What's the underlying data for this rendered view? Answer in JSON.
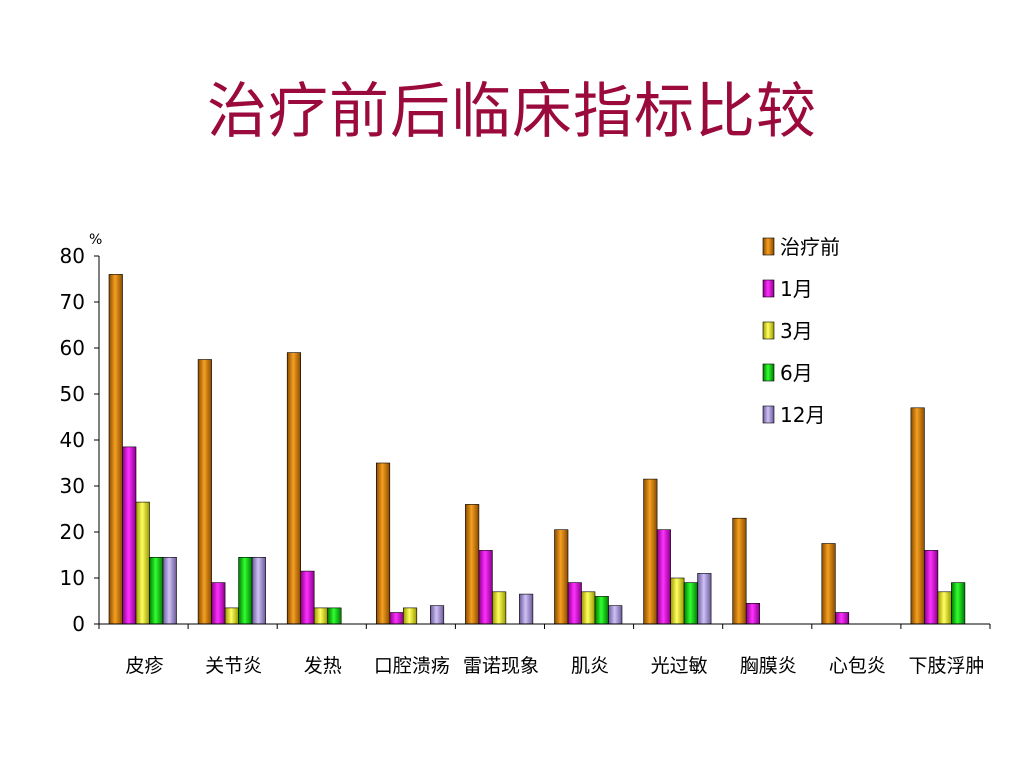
{
  "slide": {
    "title": "治疗前后临床指标比较"
  },
  "chart_data": {
    "type": "bar",
    "title": "",
    "xlabel": "",
    "ylabel": "%",
    "ylim": [
      0,
      80
    ],
    "yticks": [
      0,
      10,
      20,
      30,
      40,
      50,
      60,
      70,
      80
    ],
    "grid": false,
    "legend_position": "top-right",
    "categories": [
      "皮疹",
      "关节炎",
      "发热",
      "口腔溃疡",
      "雷诺现象",
      "肌炎",
      "光过敏",
      "胸膜炎",
      "心包炎",
      "下肢浮肿"
    ],
    "series": [
      {
        "name": "治疗前",
        "color": "#cc7a00",
        "values": [
          76,
          57.5,
          59,
          35,
          26,
          20.5,
          31.5,
          23,
          17.5,
          47
        ]
      },
      {
        "name": "1月",
        "color": "#d400d4",
        "values": [
          38.5,
          9,
          11.5,
          2.5,
          16,
          9,
          20.5,
          4.5,
          2.5,
          16
        ]
      },
      {
        "name": "3月",
        "color": "#f0f000",
        "values": [
          26.5,
          3.5,
          3.5,
          3.5,
          7,
          7,
          10,
          0,
          0,
          7
        ]
      },
      {
        "name": "6月",
        "color": "#00cc00",
        "values": [
          14.5,
          14.5,
          3.5,
          0,
          0,
          6,
          9,
          0,
          0,
          9
        ]
      },
      {
        "name": "12月",
        "color": "#a58cd6",
        "values": [
          14.5,
          14.5,
          0,
          4,
          6.5,
          4,
          11,
          0,
          0,
          0
        ]
      }
    ]
  }
}
